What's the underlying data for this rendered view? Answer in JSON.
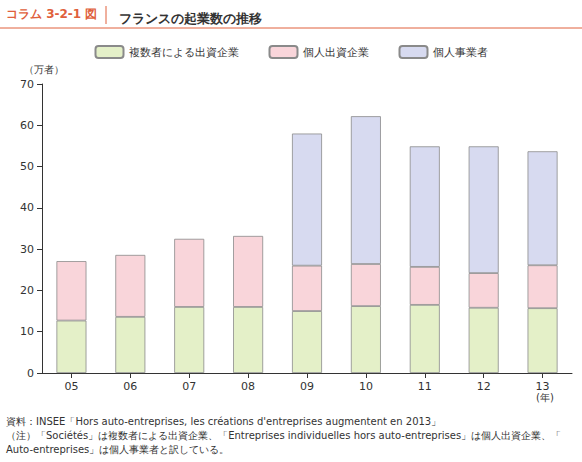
{
  "header": {
    "label": "コラム 3-2-1 図"
  },
  "chart_data": {
    "type": "bar",
    "title": "フランスの起業数の推移",
    "y_label": "（万者）",
    "x_label": "(年)",
    "categories": [
      "05",
      "06",
      "07",
      "08",
      "09",
      "10",
      "11",
      "12",
      "13"
    ],
    "series": [
      {
        "name": "複数者による出資企業",
        "color": "#e4f0c8",
        "values": [
          12.7,
          13.6,
          16.0,
          16.0,
          15.0,
          16.2,
          16.5,
          15.8,
          15.7
        ]
      },
      {
        "name": "個人出資企業",
        "color": "#f9d5da",
        "values": [
          14.4,
          15.0,
          16.5,
          17.2,
          11.0,
          10.2,
          9.2,
          8.4,
          10.4
        ]
      },
      {
        "name": "個人事業者",
        "color": "#d7daf0",
        "values": [
          null,
          null,
          null,
          null,
          32.0,
          35.8,
          29.2,
          30.7,
          27.6
        ]
      }
    ],
    "ylim": [
      0,
      70
    ],
    "yticks": [
      0,
      10,
      20,
      30,
      40,
      50,
      60,
      70
    ],
    "grid": false,
    "stacked": true,
    "legend": "top"
  },
  "notes": [
    "資料：INSEE「Hors auto-entreprises, les créations d'entreprises augmentent en 2013」",
    "（注）「Sociétés」は複数者による出資企業、「Entreprises individuelles hors auto-entreprises」は個人出資企業、「Auto-entreprises」は個人事業者と訳している。"
  ]
}
